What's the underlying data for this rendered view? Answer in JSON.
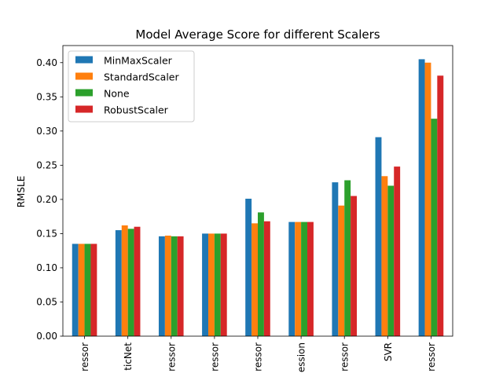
{
  "chart_data": {
    "type": "bar",
    "title": "Model Average Score for different Scalers",
    "xlabel": "",
    "ylabel": "RMSLE",
    "ylim": [
      0,
      0.425
    ],
    "yticks": [
      "0.00",
      "0.05",
      "0.10",
      "0.15",
      "0.20",
      "0.25",
      "0.30",
      "0.35",
      "0.40"
    ],
    "categories": [
      "ressor",
      "ticNet",
      "ressor",
      "ressor",
      "ressor",
      "ession",
      "ressor",
      "SVR",
      "ressor"
    ],
    "series": [
      {
        "name": "MinMaxScaler",
        "color": "#1f77b4",
        "values": [
          0.135,
          0.155,
          0.146,
          0.15,
          0.201,
          0.167,
          0.225,
          0.291,
          0.405
        ]
      },
      {
        "name": "StandardScaler",
        "color": "#ff7f0e",
        "values": [
          0.135,
          0.162,
          0.147,
          0.15,
          0.165,
          0.167,
          0.191,
          0.234,
          0.4
        ]
      },
      {
        "name": "None",
        "color": "#2ca02c",
        "values": [
          0.135,
          0.157,
          0.146,
          0.15,
          0.181,
          0.167,
          0.228,
          0.22,
          0.318
        ]
      },
      {
        "name": "RobustScaler",
        "color": "#d62728",
        "values": [
          0.135,
          0.16,
          0.146,
          0.15,
          0.168,
          0.167,
          0.205,
          0.248,
          0.381
        ]
      }
    ],
    "grid": false,
    "legend_position": "top-left"
  }
}
